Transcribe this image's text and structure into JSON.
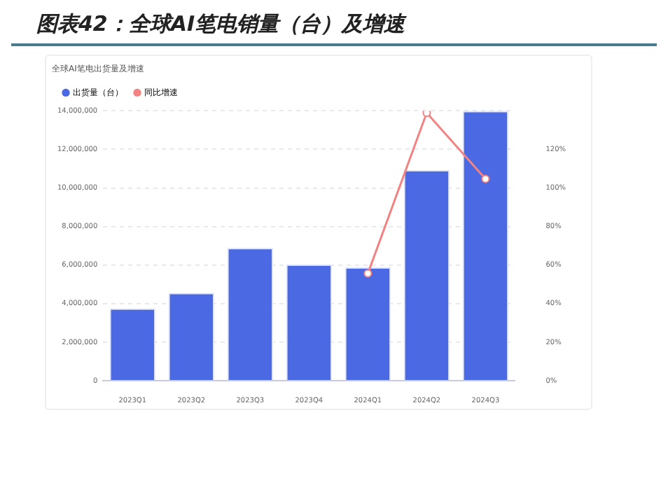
{
  "chart_data": {
    "type": "bar",
    "title": "图表42：全球AI笔电销量（台）及增速",
    "subtitle": "全球AI笔电出货量及增速",
    "categories": [
      "2023Q1",
      "2023Q2",
      "2023Q3",
      "2023Q4",
      "2024Q1",
      "2024Q2",
      "2024Q3"
    ],
    "series": [
      {
        "name": "出货量（台）",
        "color": "#4a69e2",
        "values": [
          3750000,
          4560000,
          6890000,
          6030000,
          5880000,
          10930000,
          14000000
        ]
      },
      {
        "name": "同比增速",
        "type": "line",
        "axis": "y2",
        "color": "#f38383",
        "values": [
          null,
          null,
          null,
          null,
          55.6,
          139,
          104.7
        ]
      }
    ],
    "ylim": [
      0,
      14000000
    ],
    "yticks": [
      {
        "value": 0,
        "label": "0"
      },
      {
        "value": 2000000,
        "label": "2,000,000"
      },
      {
        "value": 4000000,
        "label": "4,000,000"
      },
      {
        "value": 6000000,
        "label": "6,000,000"
      },
      {
        "value": 8000000,
        "label": "8,000,000"
      },
      {
        "value": 10000000,
        "label": "10,000,000"
      },
      {
        "value": 12000000,
        "label": "12,000,000"
      },
      {
        "value": 14000000,
        "label": "14,000,000"
      }
    ],
    "y2lim": [
      0,
      140
    ],
    "y2ticks": [
      {
        "value": 0,
        "label": "0%"
      },
      {
        "value": 20,
        "label": "20%"
      },
      {
        "value": 40,
        "label": "40%"
      },
      {
        "value": 60,
        "label": "60%"
      },
      {
        "value": 80,
        "label": "80%"
      },
      {
        "value": 100,
        "label": "100%"
      },
      {
        "value": 120,
        "label": "120%"
      }
    ],
    "grid": "y",
    "legend": "top left",
    "marker": "circle",
    "line_style": "solid"
  }
}
